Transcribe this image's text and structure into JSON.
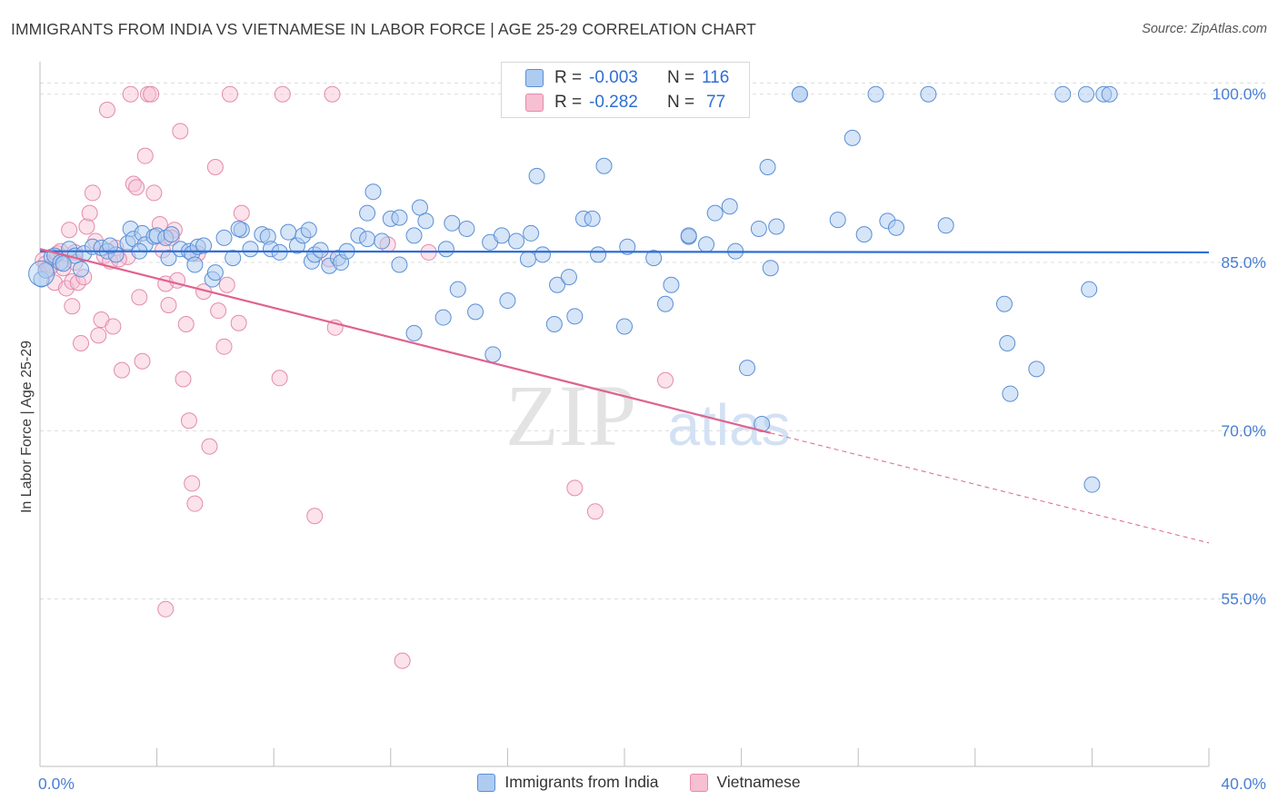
{
  "title": "IMMIGRANTS FROM INDIA VS VIETNAMESE IN LABOR FORCE | AGE 25-29 CORRELATION CHART",
  "source": "Source: ZipAtlas.com",
  "watermark": {
    "zip": "ZIP",
    "atlas": "atlas"
  },
  "colors": {
    "india_fill": "#aecbf0",
    "india_stroke": "#5b8fd6",
    "india_line": "#2f6ed6",
    "viet_fill": "#f7bfd2",
    "viet_stroke": "#e48bab",
    "viet_line": "#e0628f",
    "tick_label": "#4a7fd4",
    "grid": "#dcdcdc"
  },
  "stats": {
    "rows": [
      {
        "r_label": "R =",
        "r_value": "-0.003",
        "n_label": "N =",
        "n_value": "116"
      },
      {
        "r_label": "R =",
        "r_value": "-0.282",
        "n_label": "N =",
        "n_value": "77"
      }
    ]
  },
  "legend": {
    "india": "Immigrants from India",
    "viet": "Vietnamese"
  },
  "chart_data": {
    "type": "scatter",
    "title": "IMMIGRANTS FROM INDIA VS VIETNAMESE IN LABOR FORCE | AGE 25-29 CORRELATION CHART",
    "xlabel": "",
    "ylabel": "In Labor Force | Age 25-29",
    "xlim": [
      0,
      40
    ],
    "ylim": [
      40,
      102
    ],
    "x_tick_labels": [
      "0.0%",
      "40.0%"
    ],
    "y_ticks": [
      55,
      70,
      85,
      100
    ],
    "y_tick_labels": [
      "55.0%",
      "70.0%",
      "85.0%",
      "100.0%"
    ],
    "grid": true,
    "legend_position": "bottom",
    "series": [
      {
        "name": "Immigrants from India",
        "trend": {
          "x0": 0,
          "y0": 86.0,
          "x1": 40,
          "y1": 85.9
        },
        "points": [
          [
            0.05,
            83.5
          ],
          [
            0.2,
            84.3
          ],
          [
            0.4,
            85.5
          ],
          [
            0.5,
            85.6
          ],
          [
            0.7,
            85.0
          ],
          [
            1.0,
            86.2
          ],
          [
            1.2,
            85.6
          ],
          [
            1.5,
            85.8
          ],
          [
            1.8,
            86.4
          ],
          [
            2.1,
            86.3
          ],
          [
            2.3,
            86.0
          ],
          [
            2.6,
            85.7
          ],
          [
            3.0,
            86.7
          ],
          [
            3.1,
            88.0
          ],
          [
            3.2,
            87.1
          ],
          [
            3.5,
            87.6
          ],
          [
            3.6,
            86.6
          ],
          [
            3.9,
            87.3
          ],
          [
            4.0,
            87.4
          ],
          [
            4.3,
            87.2
          ],
          [
            4.4,
            85.4
          ],
          [
            4.5,
            87.5
          ],
          [
            4.8,
            86.2
          ],
          [
            5.1,
            86.0
          ],
          [
            5.2,
            85.8
          ],
          [
            5.3,
            84.8
          ],
          [
            5.4,
            86.4
          ],
          [
            5.6,
            86.5
          ],
          [
            5.9,
            83.5
          ],
          [
            6.0,
            84.1
          ],
          [
            6.3,
            87.2
          ],
          [
            6.6,
            85.4
          ],
          [
            6.9,
            87.9
          ],
          [
            7.2,
            86.2
          ],
          [
            7.6,
            87.5
          ],
          [
            7.8,
            87.3
          ],
          [
            7.9,
            86.2
          ],
          [
            8.2,
            85.9
          ],
          [
            8.5,
            87.7
          ],
          [
            8.8,
            86.5
          ],
          [
            9.0,
            87.4
          ],
          [
            9.2,
            87.9
          ],
          [
            9.3,
            85.1
          ],
          [
            9.4,
            85.7
          ],
          [
            9.6,
            86.1
          ],
          [
            9.9,
            84.7
          ],
          [
            10.2,
            85.4
          ],
          [
            10.3,
            85.0
          ],
          [
            10.5,
            86.0
          ],
          [
            10.9,
            87.4
          ],
          [
            11.2,
            87.1
          ],
          [
            11.2,
            89.4
          ],
          [
            11.4,
            91.3
          ],
          [
            11.7,
            86.9
          ],
          [
            12.0,
            88.9
          ],
          [
            12.3,
            84.8
          ],
          [
            12.3,
            89.0
          ],
          [
            12.8,
            87.4
          ],
          [
            12.8,
            78.7
          ],
          [
            13.0,
            89.9
          ],
          [
            13.2,
            88.7
          ],
          [
            13.8,
            80.1
          ],
          [
            13.9,
            86.2
          ],
          [
            14.1,
            88.5
          ],
          [
            14.3,
            82.6
          ],
          [
            14.6,
            88.0
          ],
          [
            14.9,
            80.6
          ],
          [
            15.4,
            86.8
          ],
          [
            15.5,
            76.8
          ],
          [
            15.8,
            87.4
          ],
          [
            16.0,
            81.6
          ],
          [
            16.3,
            86.9
          ],
          [
            16.7,
            85.3
          ],
          [
            16.8,
            87.6
          ],
          [
            17.0,
            92.7
          ],
          [
            17.2,
            85.7
          ],
          [
            17.6,
            79.5
          ],
          [
            17.7,
            83.0
          ],
          [
            18.1,
            83.7
          ],
          [
            18.3,
            80.2
          ],
          [
            18.6,
            88.9
          ],
          [
            18.9,
            88.9
          ],
          [
            19.1,
            85.7
          ],
          [
            19.3,
            93.6
          ],
          [
            20.0,
            79.3
          ],
          [
            20.1,
            86.4
          ],
          [
            21.0,
            85.4
          ],
          [
            21.4,
            81.3
          ],
          [
            21.6,
            83.0
          ],
          [
            22.2,
            87.3
          ],
          [
            22.2,
            87.4
          ],
          [
            22.8,
            86.6
          ],
          [
            23.1,
            89.4
          ],
          [
            23.6,
            90.0
          ],
          [
            23.8,
            86.0
          ],
          [
            24.2,
            75.6
          ],
          [
            24.6,
            88.0
          ],
          [
            24.7,
            70.6
          ],
          [
            24.9,
            93.5
          ],
          [
            25.0,
            84.5
          ],
          [
            25.2,
            88.2
          ],
          [
            26.0,
            100.0
          ],
          [
            26.0,
            100.0
          ],
          [
            27.3,
            88.8
          ],
          [
            27.8,
            96.1
          ],
          [
            28.2,
            87.5
          ],
          [
            28.6,
            100.0
          ],
          [
            29.0,
            88.7
          ],
          [
            29.3,
            88.1
          ],
          [
            30.4,
            100.0
          ],
          [
            31.0,
            88.3
          ],
          [
            33.0,
            81.3
          ],
          [
            33.1,
            77.8
          ],
          [
            33.2,
            73.3
          ],
          [
            34.1,
            75.5
          ],
          [
            35.0,
            100.0
          ],
          [
            35.8,
            100.0
          ],
          [
            35.9,
            82.6
          ],
          [
            36.0,
            65.2
          ],
          [
            36.4,
            100.0
          ],
          [
            36.6,
            100.0
          ],
          [
            0.8,
            84.9
          ],
          [
            1.4,
            84.4
          ],
          [
            2.4,
            86.5
          ],
          [
            3.4,
            86.0
          ],
          [
            6.8,
            88.0
          ]
        ]
      },
      {
        "name": "Vietnamese",
        "trend": {
          "x0": 0,
          "y0": 86.2,
          "x1": 25.0,
          "y1": 69.8,
          "dash_to_x": 40,
          "dash_to_y": 60.0
        },
        "points": [
          [
            0.1,
            85.2
          ],
          [
            0.2,
            84.9
          ],
          [
            0.4,
            84.7
          ],
          [
            0.5,
            83.2
          ],
          [
            0.6,
            85.8
          ],
          [
            0.7,
            86.0
          ],
          [
            0.8,
            84.5
          ],
          [
            0.9,
            82.7
          ],
          [
            1.0,
            87.9
          ],
          [
            1.1,
            83.3
          ],
          [
            1.1,
            81.1
          ],
          [
            1.2,
            85.9
          ],
          [
            1.3,
            83.2
          ],
          [
            1.4,
            77.8
          ],
          [
            1.5,
            83.7
          ],
          [
            1.6,
            88.2
          ],
          [
            1.7,
            89.4
          ],
          [
            1.8,
            91.2
          ],
          [
            1.9,
            86.9
          ],
          [
            2.0,
            78.5
          ],
          [
            2.1,
            79.9
          ],
          [
            2.2,
            85.6
          ],
          [
            2.3,
            98.6
          ],
          [
            2.4,
            85.1
          ],
          [
            2.5,
            79.3
          ],
          [
            2.6,
            86.3
          ],
          [
            2.8,
            75.4
          ],
          [
            3.0,
            85.5
          ],
          [
            3.1,
            100.0
          ],
          [
            3.2,
            92.0
          ],
          [
            3.3,
            91.7
          ],
          [
            3.4,
            81.9
          ],
          [
            3.5,
            76.2
          ],
          [
            3.6,
            94.5
          ],
          [
            3.7,
            100.0
          ],
          [
            3.8,
            100.0
          ],
          [
            3.9,
            91.2
          ],
          [
            4.1,
            88.4
          ],
          [
            4.2,
            86.1
          ],
          [
            4.3,
            83.1
          ],
          [
            4.4,
            81.2
          ],
          [
            4.6,
            87.9
          ],
          [
            4.7,
            83.4
          ],
          [
            4.8,
            96.7
          ],
          [
            4.9,
            74.6
          ],
          [
            5.0,
            79.5
          ],
          [
            5.1,
            70.9
          ],
          [
            5.2,
            65.3
          ],
          [
            5.3,
            63.5
          ],
          [
            5.6,
            82.4
          ],
          [
            5.8,
            68.6
          ],
          [
            6.0,
            93.5
          ],
          [
            6.1,
            80.7
          ],
          [
            6.3,
            77.5
          ],
          [
            6.4,
            83.0
          ],
          [
            6.5,
            100.0
          ],
          [
            6.8,
            79.6
          ],
          [
            6.9,
            89.4
          ],
          [
            8.2,
            74.7
          ],
          [
            8.3,
            100.0
          ],
          [
            9.4,
            62.4
          ],
          [
            9.9,
            85.3
          ],
          [
            10.0,
            100.0
          ],
          [
            10.1,
            79.2
          ],
          [
            11.9,
            86.6
          ],
          [
            13.3,
            85.9
          ],
          [
            17.2,
            100.0
          ],
          [
            18.3,
            64.9
          ],
          [
            19.0,
            62.8
          ],
          [
            21.4,
            74.5
          ],
          [
            4.3,
            54.1
          ],
          [
            12.4,
            49.5
          ],
          [
            0.3,
            84.4
          ],
          [
            5.4,
            85.8
          ],
          [
            2.7,
            85.3
          ],
          [
            1.2,
            85.0
          ],
          [
            4.5,
            87.2
          ]
        ]
      }
    ]
  }
}
